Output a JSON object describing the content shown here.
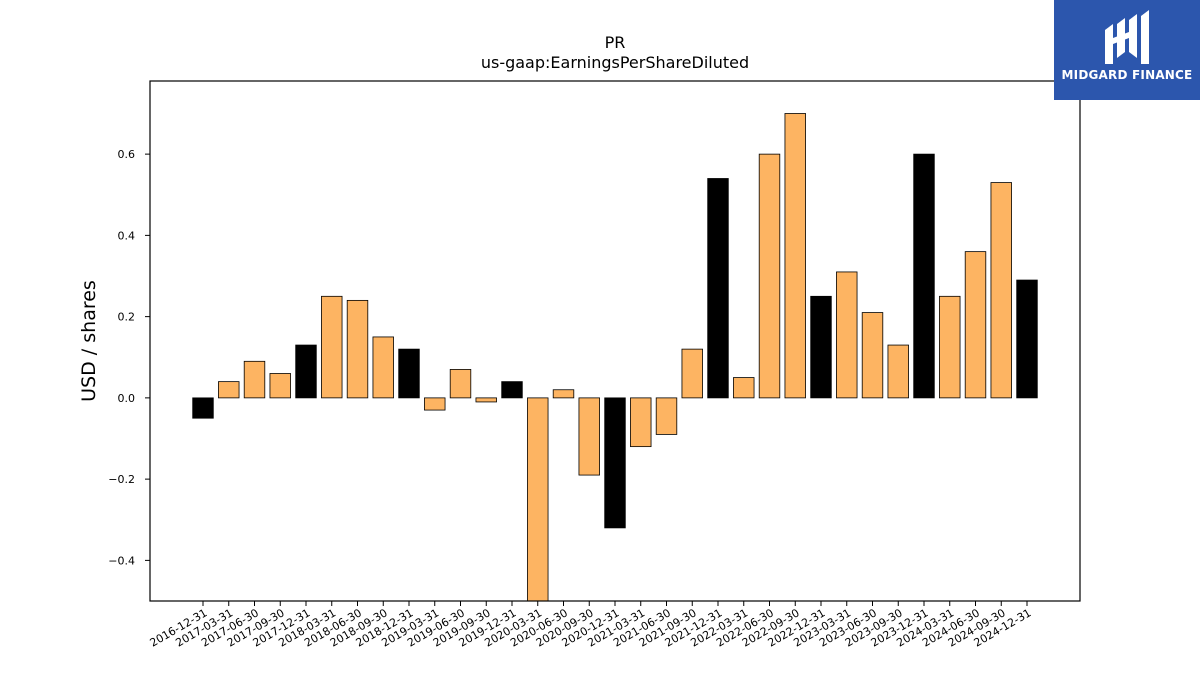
{
  "brand": {
    "name": "MIDGARD FINANCE",
    "logo_icon": "midgard-m-icon",
    "background_color": "#2c56ad",
    "text_color": "#ffffff"
  },
  "chart_data": {
    "type": "bar",
    "title": "PR",
    "subtitle": "us-gaap:EarningsPerShareDiluted",
    "xlabel": "",
    "ylabel": "USD / shares",
    "ylim": [
      -0.5,
      0.78
    ],
    "yticks": [
      -0.4,
      -0.2,
      0.0,
      0.2,
      0.4,
      0.6
    ],
    "ytick_labels": [
      "−0.4",
      "−0.2",
      "0.0",
      "0.2",
      "0.4",
      "0.6"
    ],
    "grid": false,
    "colors": {
      "quarter": "#fdb462",
      "year_end": "#000000",
      "edge": "#000000"
    },
    "categories": [
      "2016-12-31",
      "2017-03-31",
      "2017-06-30",
      "2017-09-30",
      "2017-12-31",
      "2018-03-31",
      "2018-06-30",
      "2018-09-30",
      "2018-12-31",
      "2019-03-31",
      "2019-06-30",
      "2019-09-30",
      "2019-12-31",
      "2020-03-31",
      "2020-06-30",
      "2020-09-30",
      "2020-12-31",
      "2021-03-31",
      "2021-06-30",
      "2021-09-30",
      "2021-12-31",
      "2022-03-31",
      "2022-06-30",
      "2022-09-30",
      "2022-12-31",
      "2023-03-31",
      "2023-06-30",
      "2023-09-30",
      "2023-12-31",
      "2024-03-31",
      "2024-06-30",
      "2024-09-30",
      "2024-12-31"
    ],
    "values": [
      -0.05,
      0.04,
      0.09,
      0.06,
      0.13,
      0.25,
      0.24,
      0.15,
      0.12,
      -0.03,
      0.07,
      -0.01,
      0.04,
      -0.5,
      0.02,
      -0.19,
      -0.32,
      -0.12,
      -0.09,
      0.12,
      0.54,
      0.05,
      0.6,
      0.7,
      0.25,
      0.31,
      0.21,
      0.13,
      0.6,
      0.25,
      0.36,
      0.53,
      0.29
    ],
    "bar_kind": [
      "year_end",
      "quarter",
      "quarter",
      "quarter",
      "year_end",
      "quarter",
      "quarter",
      "quarter",
      "year_end",
      "quarter",
      "quarter",
      "quarter",
      "year_end",
      "quarter",
      "quarter",
      "quarter",
      "year_end",
      "quarter",
      "quarter",
      "quarter",
      "year_end",
      "quarter",
      "quarter",
      "quarter",
      "year_end",
      "quarter",
      "quarter",
      "quarter",
      "year_end",
      "quarter",
      "quarter",
      "quarter",
      "year_end"
    ]
  }
}
